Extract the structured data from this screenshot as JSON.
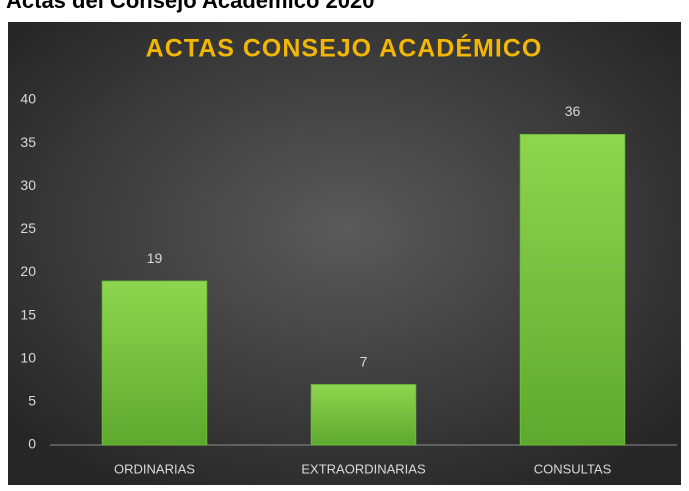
{
  "heading": "Actas del Consejo Académico 2020",
  "chart_data": {
    "type": "bar",
    "title": "ACTAS CONSEJO ACADÉMICO",
    "categories": [
      "ORDINARIAS",
      "EXTRAORDINARIAS",
      "CONSULTAS"
    ],
    "values": [
      19,
      7,
      36
    ],
    "color": "#6cbf3a",
    "ylim": [
      0,
      40
    ],
    "yticks": [
      0,
      5,
      10,
      15,
      20,
      25,
      30,
      35,
      40
    ],
    "grid": false
  }
}
